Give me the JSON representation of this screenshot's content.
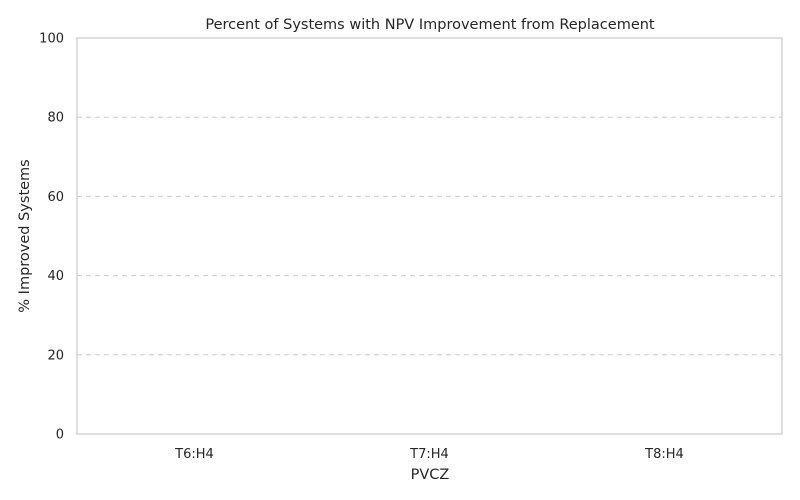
{
  "chart_data": {
    "type": "bar",
    "title": "Percent of Systems with NPV Improvement from Replacement",
    "xlabel": "PVCZ",
    "ylabel": "% Improved Systems",
    "categories": [
      "T6:H4",
      "T7:H4",
      "T8:H4"
    ],
    "values": [
      0,
      0,
      0
    ],
    "ylim": [
      0,
      100
    ],
    "yticks": [
      "0",
      "20",
      "40",
      "60",
      "80",
      "100"
    ],
    "grid": true,
    "colors": {
      "bar": "#4c72b0",
      "grid": "#cccccc",
      "frame": "#cccccc",
      "text": "#262626"
    }
  }
}
